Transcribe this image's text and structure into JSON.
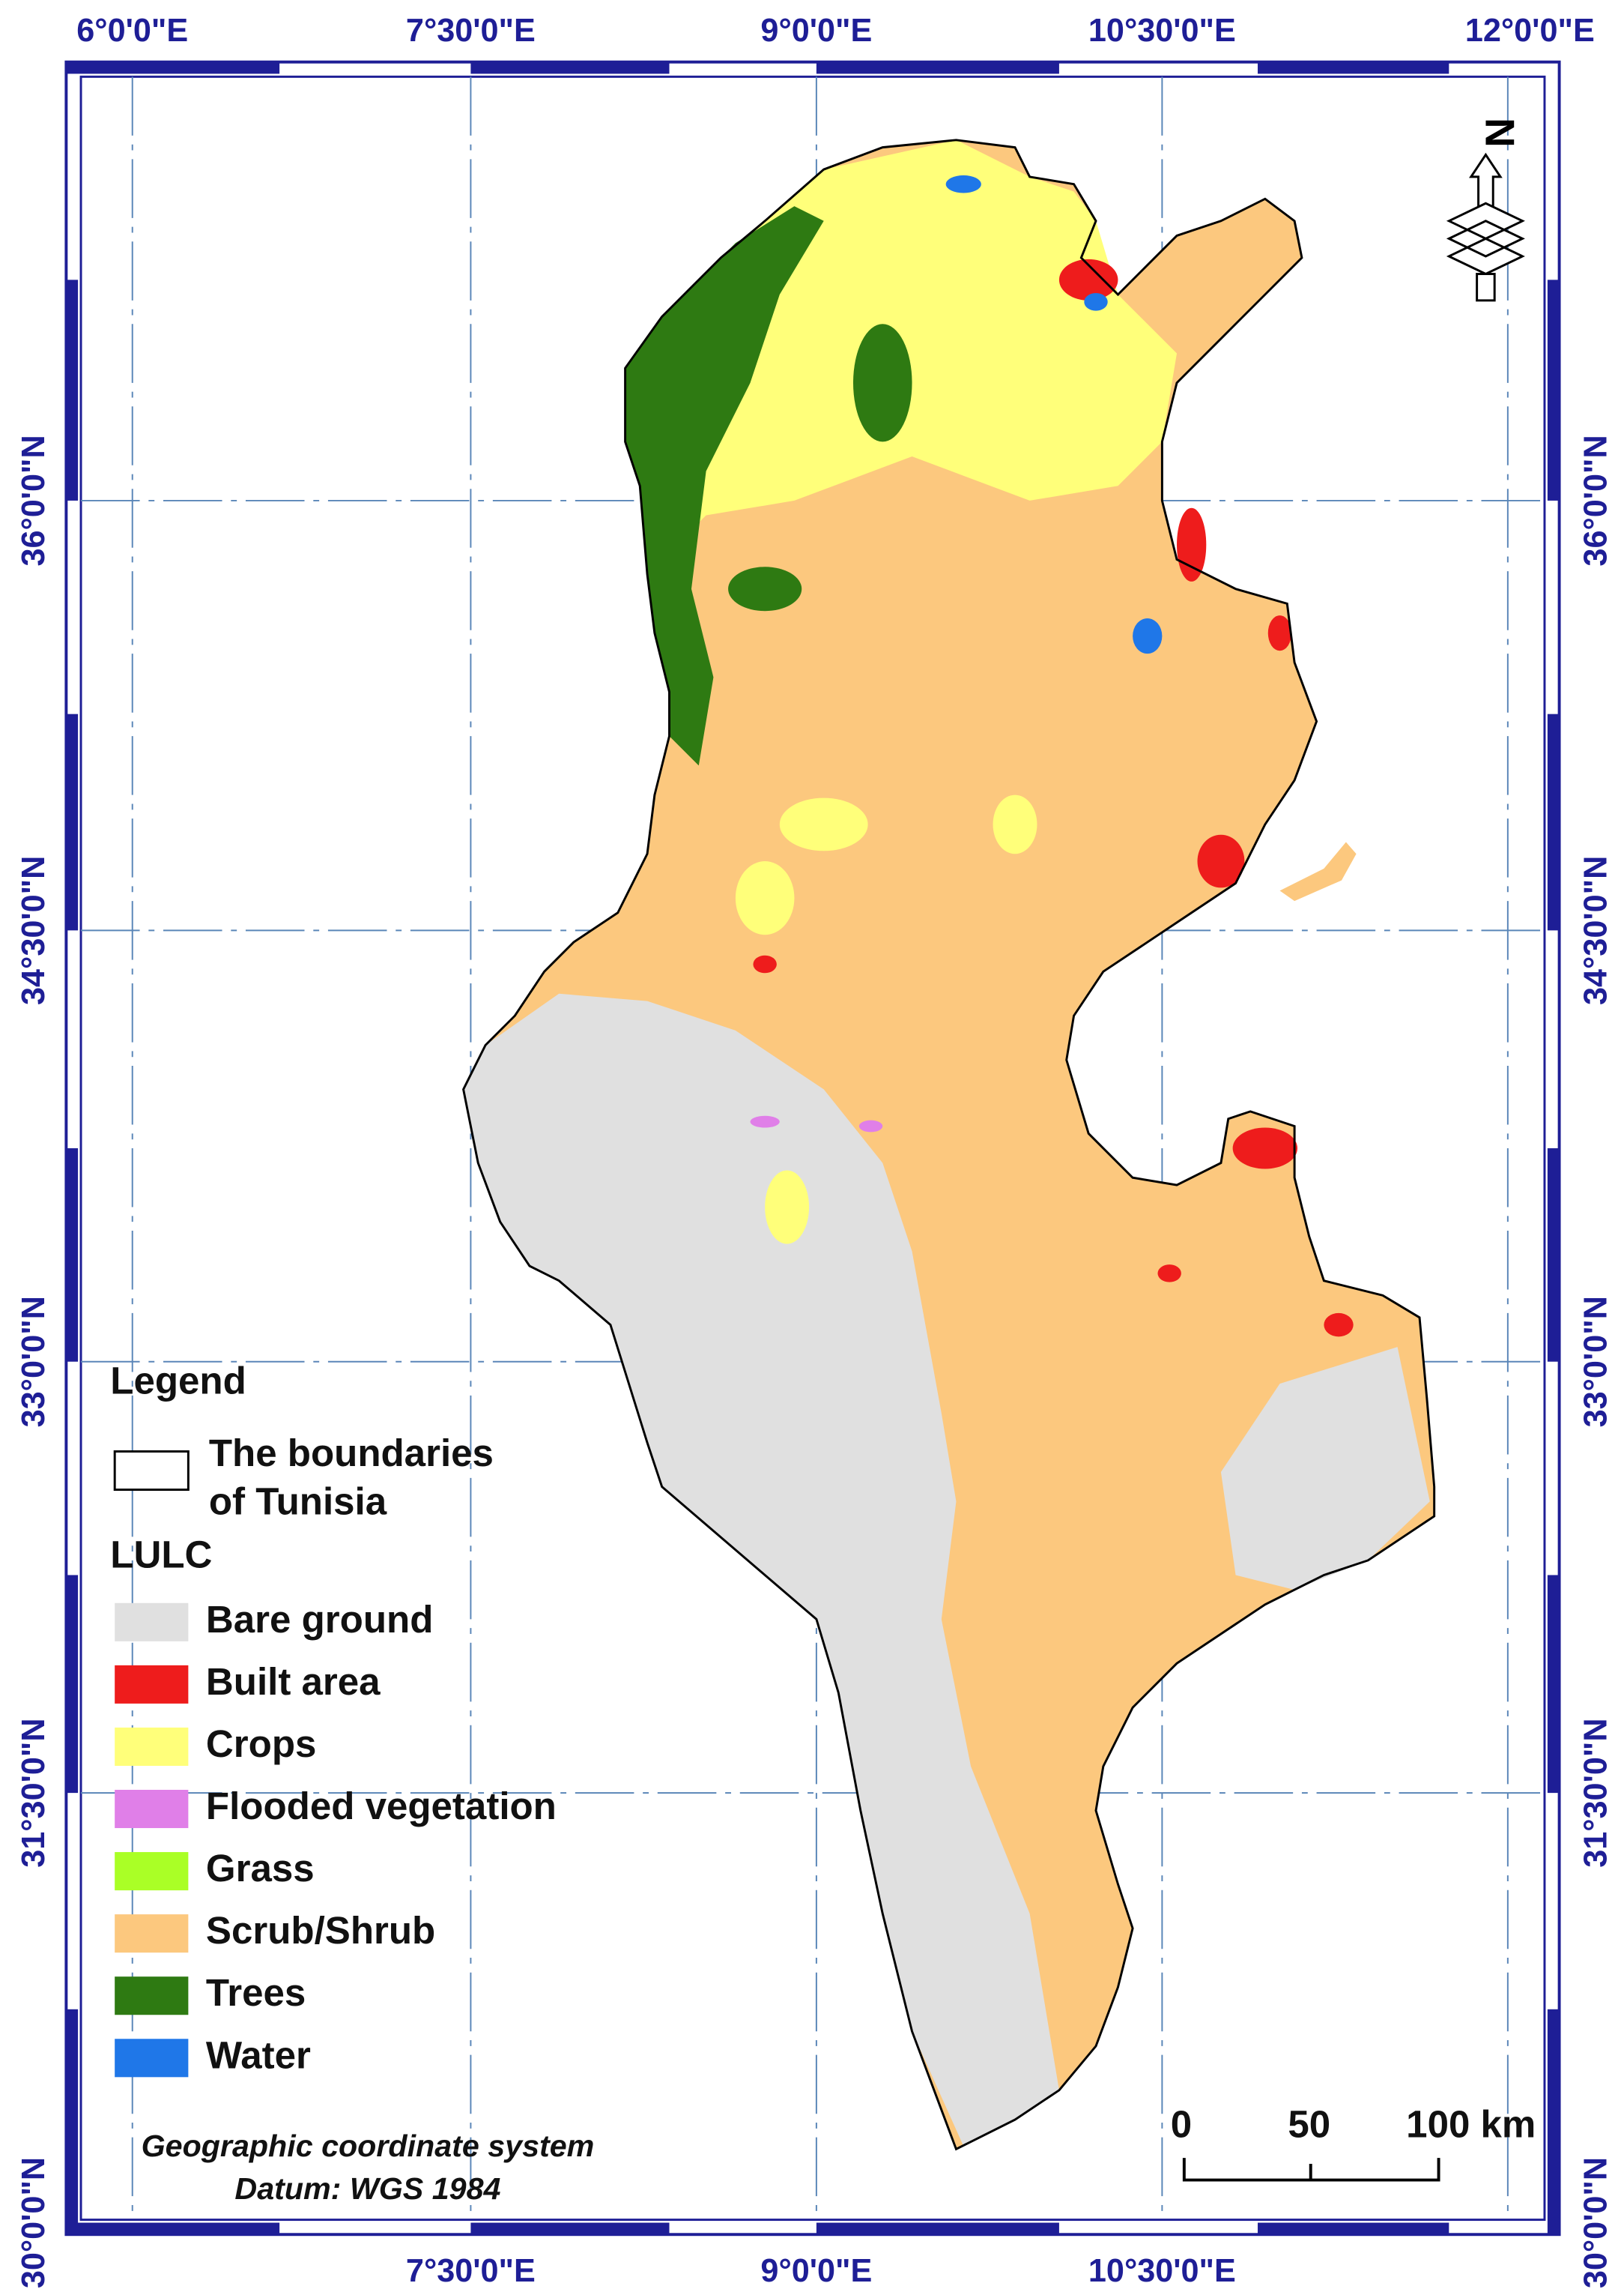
{
  "map": {
    "top_labels": [
      "6°0'0\"E",
      "7°30'0\"E",
      "9°0'0\"E",
      "10°30'0\"E",
      "12°0'0\"E"
    ],
    "bottom_labels": [
      "7°30'0\"E",
      "9°0'0\"E",
      "10°30'0\"E"
    ],
    "left_labels": [
      "36°0'0\"N",
      "34°30'0\"N",
      "33°0'0\"N",
      "31°30'0\"N",
      "30°0'0\"N"
    ],
    "right_labels": [
      "36°0'0\"N",
      "34°30'0\"N",
      "33°0'0\"N",
      "31°30'0\"N",
      "30°0'0\"N"
    ],
    "north_arrow": "N",
    "legend": {
      "title": "Legend",
      "boundary_label": [
        "The boundaries",
        "of Tunisia"
      ],
      "lulc_title": "LULC",
      "items": [
        {
          "label": "Bare ground",
          "color": "#e0e0e0"
        },
        {
          "label": "Built area",
          "color": "#ee1c1c"
        },
        {
          "label": "Crops",
          "color": "#ffff7a"
        },
        {
          "label": "Flooded vegetation",
          "color": "#e07fe8"
        },
        {
          "label": "Grass",
          "color": "#aaff26"
        },
        {
          "label": "Scrub/Shrub",
          "color": "#fcc87e"
        },
        {
          "label": "Trees",
          "color": "#2e7a12"
        },
        {
          "label": "Water",
          "color": "#1f77e8"
        }
      ]
    },
    "scale_bar": [
      "0",
      "50",
      "100 km"
    ],
    "crs": [
      "Geographic coordinate system",
      "Datum: WGS 1984"
    ]
  }
}
